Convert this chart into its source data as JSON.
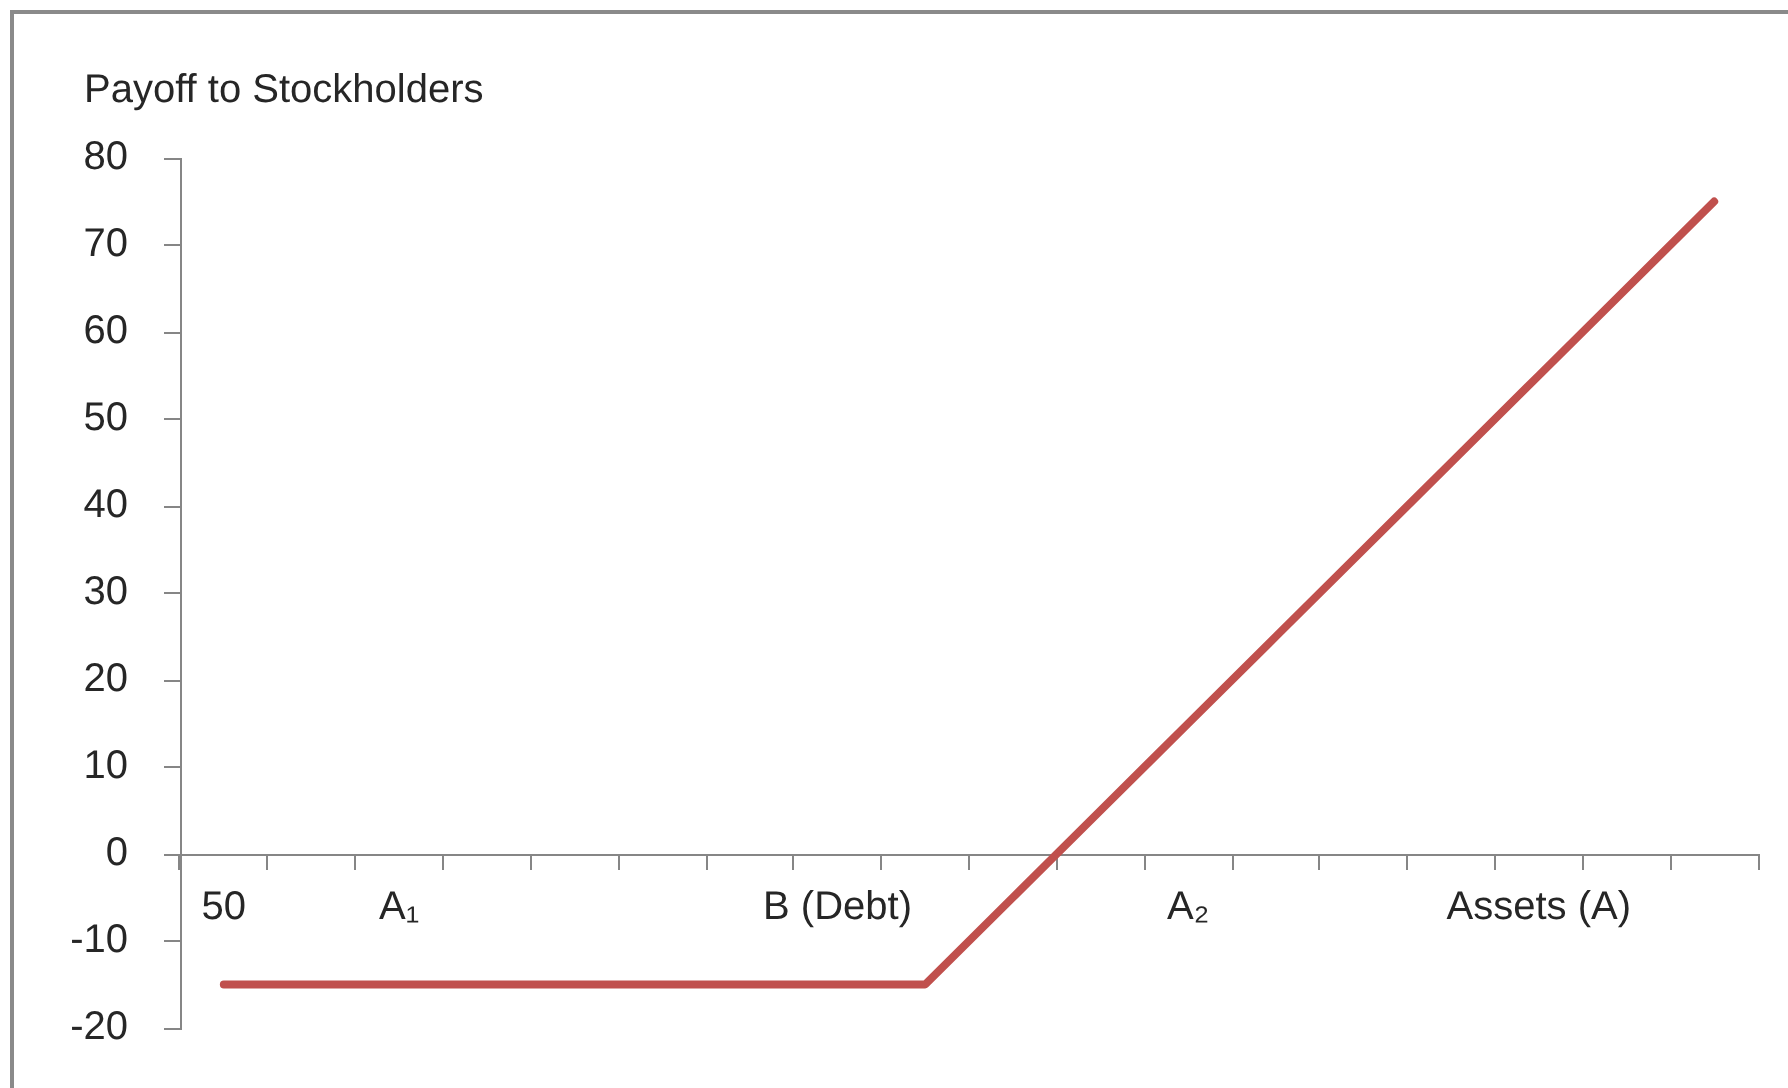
{
  "chart_data": {
    "type": "line",
    "ylabel": "Payoff to Stockholders",
    "categories": [
      "50",
      null,
      "A₁",
      null,
      null,
      null,
      null,
      "B (Debt)",
      null,
      null,
      null,
      "A₂",
      null,
      null,
      null,
      "Assets (A)",
      null,
      null
    ],
    "series": [
      {
        "color": "#c0504d",
        "values": [
          -15,
          -15,
          -15,
          -15,
          -15,
          -15,
          -15,
          -15,
          -15,
          -5,
          5,
          15,
          25,
          35,
          45,
          55,
          65,
          75
        ]
      }
    ],
    "ylim": [
      -20,
      80
    ],
    "yticks": [
      -20,
      -10,
      0,
      10,
      20,
      30,
      40,
      50,
      60,
      70,
      80
    ],
    "grid": false,
    "legend": false,
    "line_style": "solid"
  }
}
